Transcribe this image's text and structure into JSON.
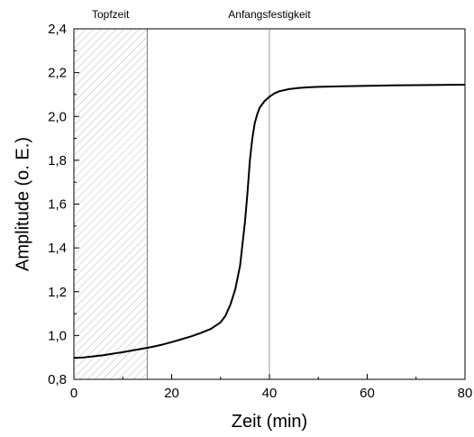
{
  "chart_data": {
    "type": "line",
    "title": "",
    "xlabel": "Zeit (min)",
    "ylabel": "Amplitude (o. E.)",
    "xlim": [
      0,
      80
    ],
    "ylim": [
      0.8,
      2.4
    ],
    "x_ticks": [
      0,
      20,
      40,
      60,
      80
    ],
    "x_tick_labels": [
      "0",
      "20",
      "40",
      "60",
      "80"
    ],
    "y_ticks": [
      0.8,
      1.0,
      1.2,
      1.4,
      1.6,
      1.8,
      2.0,
      2.2,
      2.4
    ],
    "y_tick_labels": [
      "0,8",
      "1,0",
      "1,2",
      "1,4",
      "1,6",
      "1,8",
      "2,0",
      "2,2",
      "2,4"
    ],
    "grid": false,
    "colors": {
      "line": "#000000",
      "hatch": "#bbbbbb",
      "marker_line": "#999999",
      "axis": "#000000"
    },
    "shaded_region": {
      "label": "Topfzeit",
      "x_start": 0,
      "x_end": 15,
      "fill": "hatched"
    },
    "vertical_marker": {
      "label": "Anfangsfestigkeit",
      "x": 40
    },
    "series": [
      {
        "x": [
          0,
          2,
          4,
          6,
          8,
          10,
          12,
          14,
          16,
          18,
          20,
          22,
          24,
          26,
          28,
          30,
          31,
          32,
          33,
          34,
          35,
          35.5,
          36,
          36.5,
          37,
          37.5,
          38,
          39,
          40,
          41,
          42,
          44,
          46,
          48,
          50,
          55,
          60,
          65,
          70,
          75,
          80
        ],
        "y": [
          0.898,
          0.9,
          0.905,
          0.91,
          0.917,
          0.924,
          0.932,
          0.94,
          0.948,
          0.958,
          0.97,
          0.983,
          0.996,
          1.012,
          1.03,
          1.06,
          1.09,
          1.14,
          1.21,
          1.32,
          1.52,
          1.65,
          1.8,
          1.9,
          1.97,
          2.01,
          2.04,
          2.07,
          2.09,
          2.105,
          2.115,
          2.125,
          2.13,
          2.133,
          2.135,
          2.138,
          2.14,
          2.142,
          2.143,
          2.144,
          2.145
        ]
      }
    ]
  }
}
